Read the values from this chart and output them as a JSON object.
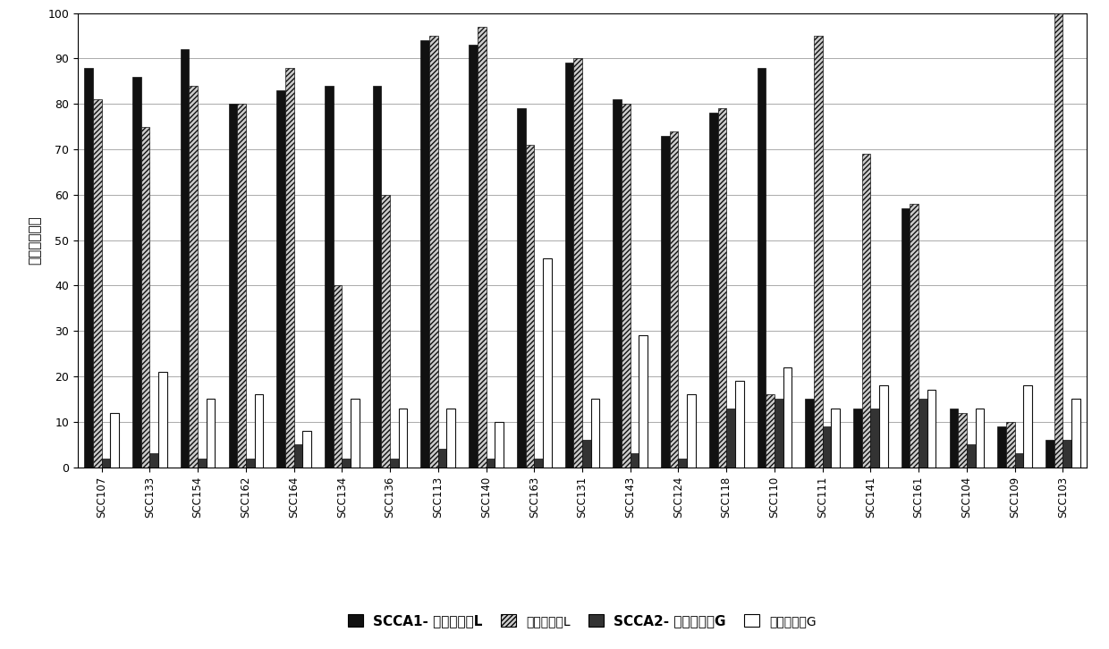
{
  "categories": [
    "SCC107",
    "SCC133",
    "SCC154",
    "SCC162",
    "SCC164",
    "SCC134",
    "SCC136",
    "SCC113",
    "SCC140",
    "SCC163",
    "SCC131",
    "SCC143",
    "SCC124",
    "SCC118",
    "SCC110",
    "SCC111",
    "SCC141",
    "SCC161",
    "SCC104",
    "SCC109",
    "SCC103"
  ],
  "scca1_L": [
    88,
    86,
    92,
    80,
    83,
    84,
    84,
    94,
    93,
    79,
    89,
    81,
    73,
    78,
    88,
    15,
    13,
    57,
    13,
    9,
    6
  ],
  "tissue_L": [
    81,
    75,
    84,
    80,
    88,
    40,
    60,
    95,
    97,
    71,
    90,
    80,
    74,
    79,
    16,
    95,
    69,
    58,
    12,
    10,
    100
  ],
  "scca2_G": [
    2,
    3,
    2,
    2,
    5,
    2,
    2,
    4,
    2,
    2,
    6,
    3,
    2,
    13,
    15,
    9,
    13,
    15,
    5,
    3,
    6
  ],
  "tissue_G": [
    12,
    21,
    15,
    16,
    8,
    15,
    13,
    13,
    10,
    46,
    15,
    29,
    16,
    19,
    22,
    13,
    18,
    17,
    13,
    18,
    15
  ],
  "bar_width": 0.18,
  "ylabel": "相关的反应性",
  "ylim": [
    0,
    100
  ],
  "yticks": [
    0,
    10,
    20,
    30,
    40,
    50,
    60,
    70,
    80,
    90,
    100
  ],
  "color_scca1_L": "#111111",
  "color_tissue_L_face": "#888888",
  "color_scca2_G": "#333333",
  "color_tissue_G": "#ffffff",
  "legend_labels": [
    "SCCA1- 组织蛋白酶L",
    "组织蛋白酶L",
    "SCCA2- 组织蛋白酶G",
    "组织蛋白酶G"
  ],
  "background_color": "#ffffff",
  "grid_color": "#aaaaaa"
}
